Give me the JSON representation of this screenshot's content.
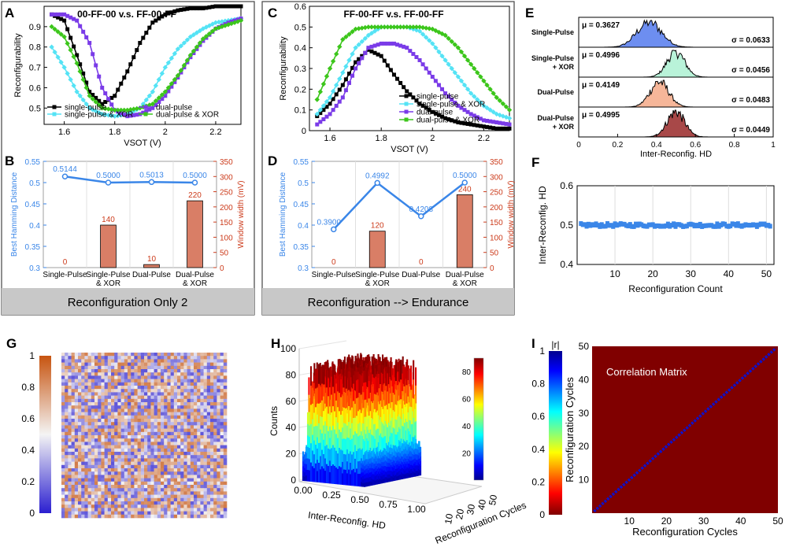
{
  "colors": {
    "black": "#000000",
    "cyan": "#55e3f5",
    "purple": "#7a3be8",
    "green": "#3cc61b",
    "blue": "#3a86e8",
    "bar": "#d97e66",
    "red_axis": "#cc3b1b",
    "grey_band": "#c8c8c8",
    "line_blue": "#2e7fe8",
    "dark_red": "#800000"
  },
  "panels": {
    "A": "A",
    "B": "B",
    "C": "C",
    "D": "D",
    "E": "E",
    "F": "F",
    "G": "G",
    "H": "H",
    "I": "I"
  },
  "band_left": "Reconfiguration Only 2",
  "band_right": "Reconfiguration --> Endurance",
  "chart_data": [
    {
      "id": "A",
      "type": "line",
      "title": "00-FF-00 v.s. FF-00-FF",
      "xlabel": "VSOT (V)",
      "ylabel": "Reconfigurability",
      "xlim": [
        1.52,
        2.3
      ],
      "ylim": [
        0.42,
        1.0
      ],
      "xticks": [
        "1.6",
        "1.8",
        "2",
        "2.2"
      ],
      "xtick_values": [
        1.6,
        1.8,
        2.0,
        2.2
      ],
      "yticks": [
        "0.5",
        "0.6",
        "0.7",
        "0.8",
        "0.9"
      ],
      "ytick_values": [
        0.5,
        0.6,
        0.7,
        0.8,
        0.9
      ],
      "x": [
        1.55,
        1.6,
        1.65,
        1.7,
        1.75,
        1.8,
        1.85,
        1.9,
        1.95,
        2.0,
        2.05,
        2.1,
        2.15,
        2.2,
        2.25,
        2.3
      ],
      "series": [
        {
          "name": "single-pulse",
          "color": "#000000",
          "marker": "square",
          "values": [
            0.96,
            0.93,
            0.76,
            0.58,
            0.52,
            0.56,
            0.68,
            0.82,
            0.92,
            0.96,
            0.98,
            0.99,
            0.99,
            1.0,
            1.0,
            1.0
          ]
        },
        {
          "name": "single-pulse & XOR",
          "color": "#55e3f5",
          "marker": "diamond",
          "values": [
            0.8,
            0.7,
            0.58,
            0.5,
            0.47,
            0.46,
            0.47,
            0.5,
            0.58,
            0.7,
            0.79,
            0.85,
            0.89,
            0.92,
            0.93,
            0.94
          ]
        },
        {
          "name": "dual-pulse",
          "color": "#7a3be8",
          "marker": "square",
          "values": [
            0.96,
            0.96,
            0.93,
            0.82,
            0.6,
            0.49,
            0.46,
            0.47,
            0.5,
            0.56,
            0.65,
            0.75,
            0.83,
            0.89,
            0.92,
            0.94
          ]
        },
        {
          "name": "dual-pulse & XOR",
          "color": "#3cc61b",
          "marker": "diamond",
          "values": [
            0.9,
            0.85,
            0.72,
            0.56,
            0.5,
            0.49,
            0.49,
            0.5,
            0.52,
            0.58,
            0.66,
            0.76,
            0.84,
            0.89,
            0.91,
            0.93
          ]
        }
      ]
    },
    {
      "id": "B",
      "type": "bar",
      "categories": [
        "Single-Pulse",
        "Single-Pulse & XOR",
        "Dual-Pulse",
        "Dual-Pulse & XOR"
      ],
      "ylabel": "Best Hamming Distance",
      "y2label": "Window width (mV)",
      "ylim": [
        0.3,
        0.55
      ],
      "yticks": [
        "0.3",
        "0.35",
        "0.4",
        "0.45",
        "0.5",
        "0.55"
      ],
      "ytick_values": [
        0.3,
        0.35,
        0.4,
        0.45,
        0.5,
        0.55
      ],
      "y2lim": [
        0,
        350
      ],
      "y2ticks": [
        "0",
        "50",
        "100",
        "150",
        "200",
        "250",
        "300",
        "350"
      ],
      "y2tick_values": [
        0,
        50,
        100,
        150,
        200,
        250,
        300,
        350
      ],
      "hd": [
        0.5144,
        0.5,
        0.5013,
        0.5
      ],
      "hd_labels": [
        "0.5144",
        "0.5000",
        "0.5013",
        "0.5000"
      ],
      "window": [
        0,
        140,
        10,
        220
      ],
      "window_labels": [
        "0",
        "140",
        "10",
        "220"
      ]
    },
    {
      "id": "C",
      "type": "line",
      "title": "FF-00-FF v.s. FF-00-FF",
      "xlabel": "VSOT (V)",
      "ylabel": "Reconfigurability",
      "xlim": [
        1.52,
        2.3
      ],
      "ylim": [
        0,
        0.6
      ],
      "xticks": [
        "1.6",
        "1.8",
        "2",
        "2.2"
      ],
      "xtick_values": [
        1.6,
        1.8,
        2.0,
        2.2
      ],
      "yticks": [
        "0",
        "0.1",
        "0.2",
        "0.3",
        "0.4",
        "0.5",
        "0.6"
      ],
      "ytick_values": [
        0,
        0.1,
        0.2,
        0.3,
        0.4,
        0.5,
        0.6
      ],
      "x": [
        1.55,
        1.6,
        1.65,
        1.7,
        1.75,
        1.8,
        1.85,
        1.9,
        1.95,
        2.0,
        2.05,
        2.1,
        2.15,
        2.2,
        2.25,
        2.3
      ],
      "series": [
        {
          "name": "single-pulse",
          "color": "#000000",
          "marker": "square",
          "values": [
            0.07,
            0.13,
            0.22,
            0.33,
            0.39,
            0.36,
            0.27,
            0.19,
            0.13,
            0.09,
            0.06,
            0.04,
            0.03,
            0.02,
            0.01,
            0.01
          ]
        },
        {
          "name": "single-pulse & XOR",
          "color": "#55e3f5",
          "marker": "diamond",
          "values": [
            0.08,
            0.16,
            0.28,
            0.4,
            0.46,
            0.5,
            0.5,
            0.5,
            0.48,
            0.42,
            0.34,
            0.26,
            0.18,
            0.12,
            0.08,
            0.06
          ]
        },
        {
          "name": "dual-pulse",
          "color": "#7a3be8",
          "marker": "square",
          "values": [
            0.03,
            0.08,
            0.16,
            0.3,
            0.4,
            0.42,
            0.42,
            0.4,
            0.34,
            0.26,
            0.18,
            0.12,
            0.08,
            0.05,
            0.04,
            0.03
          ]
        },
        {
          "name": "dual-pulse & XOR",
          "color": "#3cc61b",
          "marker": "diamond",
          "values": [
            0.15,
            0.3,
            0.44,
            0.49,
            0.5,
            0.5,
            0.5,
            0.5,
            0.5,
            0.49,
            0.46,
            0.4,
            0.32,
            0.24,
            0.16,
            0.1
          ]
        }
      ]
    },
    {
      "id": "D",
      "type": "bar",
      "categories": [
        "Single-Pulse",
        "Single-Pulse & XOR",
        "Dual-Pulse",
        "Dual-Pulse & XOR"
      ],
      "ylabel": "Best Hamming Distance",
      "y2label": "Window width (mV)",
      "ylim": [
        0.3,
        0.55
      ],
      "yticks": [
        "0.3",
        "0.35",
        "0.4",
        "0.45",
        "0.5",
        "0.55"
      ],
      "ytick_values": [
        0.3,
        0.35,
        0.4,
        0.45,
        0.5,
        0.55
      ],
      "y2lim": [
        0,
        350
      ],
      "y2ticks": [
        "0",
        "50",
        "100",
        "150",
        "200",
        "250",
        "300",
        "350"
      ],
      "y2tick_values": [
        0,
        50,
        100,
        150,
        200,
        250,
        300,
        350
      ],
      "hd": [
        0.39,
        0.4992,
        0.4208,
        0.5
      ],
      "hd_labels": [
        "0.3900",
        "0.4992",
        "0.4208",
        "0.5000"
      ],
      "window": [
        0,
        120,
        0,
        240
      ],
      "window_labels": [
        "0",
        "120",
        "0",
        "240"
      ]
    },
    {
      "id": "E",
      "type": "area",
      "xlabel": "Inter-Reconfig. HD",
      "xlim": [
        0,
        1
      ],
      "xticks": [
        "0",
        "0.2",
        "0.4",
        "0.6",
        "0.8",
        "1"
      ],
      "xtick_values": [
        0,
        0.2,
        0.4,
        0.6,
        0.8,
        1
      ],
      "rows": [
        {
          "label": "Single-Pulse",
          "mu": "μ = 0.3627",
          "sigma": "σ = 0.0633",
          "mean": 0.3627,
          "sd": 0.0633,
          "color": "#6d8ef0"
        },
        {
          "label": "Single-Pulse + XOR",
          "mu": "μ = 0.4996",
          "sigma": "σ = 0.0456",
          "mean": 0.4996,
          "sd": 0.0456,
          "color": "#b9f3d9"
        },
        {
          "label": "Dual-Pulse",
          "mu": "μ = 0.4149",
          "sigma": "σ = 0.0483",
          "mean": 0.4149,
          "sd": 0.0483,
          "color": "#f6b699"
        },
        {
          "label": "Dual-Pulse + XOR",
          "mu": "μ = 0.4995",
          "sigma": "σ = 0.0449",
          "mean": 0.4995,
          "sd": 0.0449,
          "color": "#a84848"
        }
      ]
    },
    {
      "id": "F",
      "type": "scatter",
      "xlabel": "Reconfiguration Count",
      "ylabel": "Inter-Reconfig. HD",
      "xlim": [
        0,
        52
      ],
      "ylim": [
        0.4,
        0.6
      ],
      "xticks": [
        "10",
        "20",
        "30",
        "40",
        "50"
      ],
      "xtick_values": [
        10,
        20,
        30,
        40,
        50
      ],
      "yticks": [
        "0.4",
        "0.5",
        "0.6"
      ],
      "ytick_values": [
        0.4,
        0.5,
        0.6
      ],
      "mean": 0.5
    },
    {
      "id": "G",
      "type": "heatmap",
      "colorbar_ticks": [
        "0",
        "0.2",
        "0.4",
        "0.6",
        "0.8",
        "1"
      ],
      "colorbar_values": [
        0,
        0.2,
        0.4,
        0.6,
        0.8,
        1
      ],
      "size": 50
    },
    {
      "id": "H",
      "type": "bar3d",
      "zlabel": "Counts",
      "xlabel": "Inter-Reconfig. HD",
      "ylabel": "Reconfiguration Cycles",
      "zticks": [
        "0",
        "20",
        "40",
        "60",
        "80",
        "100"
      ],
      "ztick_values": [
        0,
        20,
        40,
        60,
        80,
        100
      ],
      "xticks": [
        "0.00",
        "0.25",
        "0.50",
        "0.75",
        "1.00"
      ],
      "xtick_values": [
        0,
        0.25,
        0.5,
        0.75,
        1.0
      ],
      "yticks": [
        "10",
        "20",
        "30",
        "40",
        "50"
      ],
      "ytick_values": [
        10,
        20,
        30,
        40,
        50
      ],
      "colorbar_ticks": [
        "20",
        "40",
        "60",
        "80"
      ],
      "colorbar_values": [
        20,
        40,
        60,
        80
      ],
      "colorbar_range": [
        0,
        90
      ]
    },
    {
      "id": "I",
      "type": "heatmap",
      "title": "Correlation Matrix",
      "xlabel": "Reconfiguration Cycles",
      "ylabel": "Reconfiguration Cycles",
      "colorbar_label": "|r|",
      "colorbar_ticks": [
        "0",
        "0.2",
        "0.4",
        "0.6",
        "0.8",
        "1"
      ],
      "colorbar_values": [
        0,
        0.2,
        0.4,
        0.6,
        0.8,
        1
      ],
      "xticks": [
        "10",
        "20",
        "30",
        "40",
        "50"
      ],
      "xtick_values": [
        10,
        20,
        30,
        40,
        50
      ],
      "yticks": [
        "10",
        "20",
        "30",
        "40",
        "50"
      ],
      "ytick_values": [
        10,
        20,
        30,
        40,
        50
      ],
      "size": 50,
      "off_diagonal": 0.0,
      "diagonal": 1.0
    }
  ]
}
